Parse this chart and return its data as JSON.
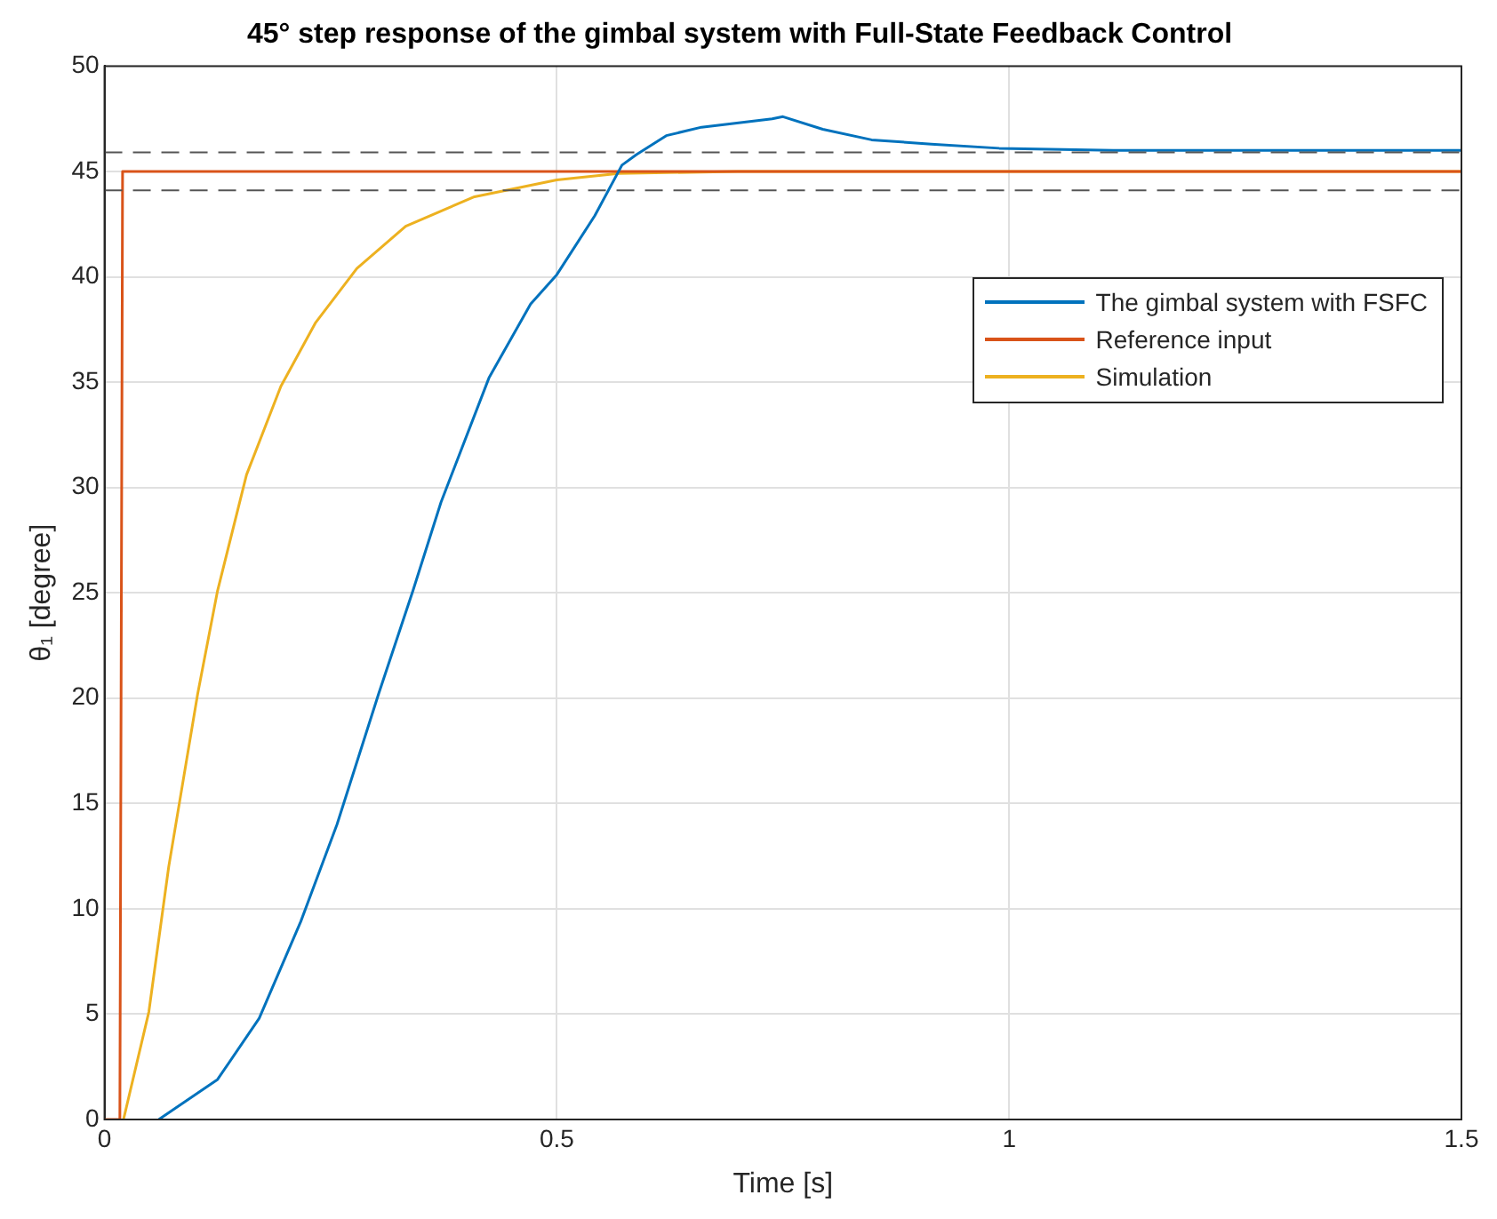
{
  "chart_data": {
    "type": "line",
    "title": "45° step response of the gimbal system with Full-State Feedback Control",
    "xlabel": "Time [s]",
    "ylabel": "θ₁ [degree]",
    "xlim": [
      0,
      1.5
    ],
    "xticks": [
      0,
      0.5,
      1,
      1.5
    ],
    "ylim": [
      0,
      50
    ],
    "yticks": [
      0,
      5,
      10,
      15,
      20,
      25,
      30,
      35,
      40,
      45,
      50
    ],
    "grid": true,
    "legend": "top right",
    "marker": "none",
    "line_style": "solid",
    "series": [
      {
        "name": "The gimbal system with FSFC",
        "color": "#0072bd",
        "x": [
          0.06,
          0.125,
          0.171,
          0.217,
          0.257,
          0.303,
          0.341,
          0.372,
          0.425,
          0.471,
          0.5,
          0.542,
          0.572,
          0.588,
          0.621,
          0.66,
          0.738,
          0.75,
          0.794,
          0.848,
          0.914,
          0.989,
          1.115,
          1.3,
          1.5
        ],
        "values": [
          0,
          1.9,
          4.8,
          9.4,
          14,
          20.2,
          25.1,
          29.3,
          35.2,
          38.7,
          40.1,
          42.9,
          45.3,
          45.8,
          46.7,
          47.1,
          47.5,
          47.6,
          47,
          46.5,
          46.3,
          46.1,
          46,
          46,
          46
        ]
      },
      {
        "name": "Reference input",
        "color": "#d95319",
        "x": [
          0,
          0.017,
          0.02,
          1.5
        ],
        "values": [
          0,
          0,
          45,
          45
        ]
      },
      {
        "name": "Simulation",
        "color": "#edb120",
        "x": [
          0.021,
          0.049,
          0.071,
          0.103,
          0.125,
          0.157,
          0.195,
          0.233,
          0.279,
          0.333,
          0.409,
          0.5,
          0.568,
          0.7,
          0.85,
          1.5
        ],
        "values": [
          0,
          5.1,
          12,
          20.2,
          25.1,
          30.6,
          34.8,
          37.8,
          40.4,
          42.4,
          43.8,
          44.6,
          44.9,
          45,
          45,
          45
        ]
      }
    ],
    "ref_lines": [
      {
        "axis": "y",
        "value": 45.9,
        "color": "#555555",
        "line_style": "dashed"
      },
      {
        "axis": "y",
        "value": 44.1,
        "color": "#555555",
        "line_style": "dashed"
      }
    ]
  }
}
